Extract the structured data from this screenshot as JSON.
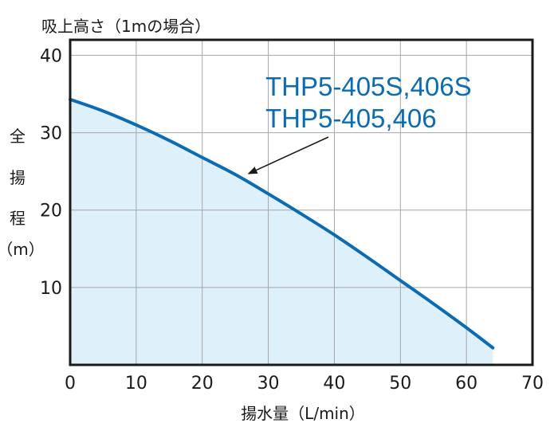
{
  "chart_data": {
    "type": "area",
    "title": "",
    "subtitle": "吸上高さ（1mの場合）",
    "xlabel": "揚水量（L/min）",
    "ylabel": [
      "全",
      "揚",
      "程",
      "（m）"
    ],
    "xlim": [
      0,
      70
    ],
    "ylim": [
      0,
      42
    ],
    "x_ticks": [
      "0",
      "10",
      "20",
      "30",
      "40",
      "50",
      "60",
      "70"
    ],
    "y_ticks": [
      "10",
      "20",
      "30",
      "40"
    ],
    "grid": true,
    "series": [
      {
        "x": [
          0,
          5,
          10,
          15,
          20,
          25,
          30,
          35,
          40,
          45,
          50,
          55,
          60,
          64
        ],
        "y": [
          34.3,
          32.8,
          31.0,
          29.0,
          26.8,
          24.6,
          22.1,
          19.5,
          16.8,
          13.9,
          10.9,
          7.9,
          4.8,
          2.2
        ]
      }
    ],
    "annotations": [
      {
        "text": "THP5-405S,406S",
        "line": 1
      },
      {
        "text": "THP5-405,406",
        "line": 2
      }
    ],
    "arrow_target": {
      "x": 27,
      "y": 24.7
    },
    "colors": {
      "line": "#0b6cb4",
      "fill": "#def0fa",
      "annotation": "#0b6cb4",
      "grid": "#a6a6a6",
      "frame": "#1a1a1a"
    }
  }
}
